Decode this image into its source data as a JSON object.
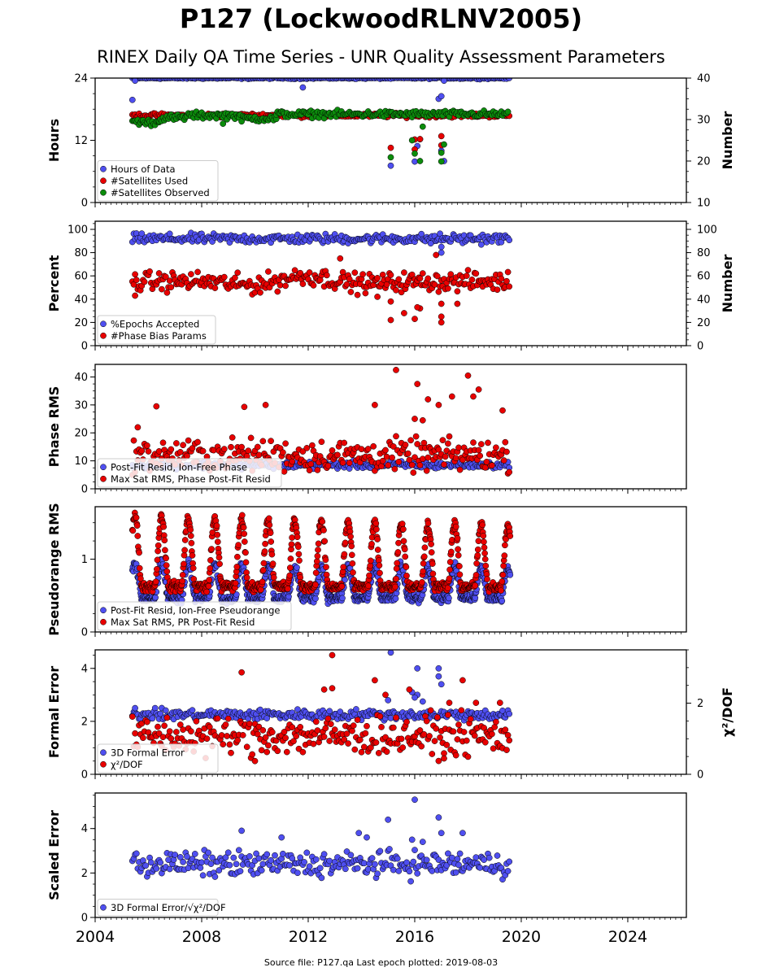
{
  "title": "P127 (LockwoodRLNV2005)",
  "subtitle": "RINEX Daily QA Time Series - UNR Quality Assessment Parameters",
  "footer": "Source file: P127.qa Last epoch plotted: 2019-08-03",
  "colors": {
    "blue": "#4f4ff0",
    "red": "#e80000",
    "green": "#0c8c0c",
    "edge": "#000000"
  },
  "chart_data": [
    {
      "type": "scatter",
      "ylabel": "Hours",
      "y2label": "Number",
      "ylim": [
        0,
        24
      ],
      "yticks": [
        0,
        12,
        24
      ],
      "y2lim": [
        10,
        40
      ],
      "y2ticks": [
        10,
        20,
        30,
        40
      ],
      "legend": [
        "Hours of Data",
        "#Satellites Used",
        "#Satellites Observed"
      ],
      "legend_loc": "lower-left",
      "series": [
        {
          "name": "Hours of Data",
          "color": "blue",
          "axis": "left",
          "base": 24.0,
          "spread": 0.1,
          "outliers": [
            [
              2005.4,
              19.8
            ],
            [
              2005.5,
              23.5
            ],
            [
              2011.8,
              22.2
            ],
            [
              2015.1,
              7.1
            ],
            [
              2016.0,
              7.9
            ],
            [
              2016.2,
              12.2
            ],
            [
              2016.1,
              10.9
            ],
            [
              2017.0,
              10.0
            ],
            [
              2016.9,
              20.0
            ],
            [
              2017.0,
              20.5
            ],
            [
              2017.1,
              8.0
            ],
            [
              2017.1,
              23.5
            ]
          ]
        },
        {
          "name": "#Satellites Used",
          "color": "red",
          "axis": "right",
          "base": 31.0,
          "spread": 0.3,
          "outliers": [
            [
              2015.1,
              23.2
            ],
            [
              2016.0,
              25.2
            ],
            [
              2016.0,
              22.8
            ],
            [
              2016.2,
              25.3
            ],
            [
              2017.0,
              26.0
            ],
            [
              2017.0,
              23.8
            ]
          ]
        },
        {
          "name": "#Satellites Observed",
          "color": "green",
          "axis": "right",
          "segments": [
            [
              2005.4,
              2005.8,
              29.5
            ],
            [
              2005.8,
              2006.4,
              29.3
            ],
            [
              2006.4,
              2007.4,
              30.4
            ],
            [
              2007.4,
              2009.4,
              31.0
            ],
            [
              2009.4,
              2010.8,
              30.3
            ],
            [
              2010.8,
              2019.5,
              31.3
            ]
          ],
          "spread": 0.5,
          "outliers": [
            [
              2015.1,
              20.9
            ],
            [
              2015.9,
              25.0
            ],
            [
              2016.0,
              21.8
            ],
            [
              2016.2,
              20.0
            ],
            [
              2016.3,
              28.3
            ],
            [
              2017.0,
              22.0
            ],
            [
              2017.0,
              19.9
            ],
            [
              2017.1,
              24.0
            ],
            [
              2008.8,
              29.0
            ]
          ]
        }
      ]
    },
    {
      "type": "scatter",
      "ylabel": "Percent",
      "y2label": "Number",
      "ylim": [
        0,
        107
      ],
      "yticks": [
        0,
        20,
        40,
        60,
        80,
        100
      ],
      "y2lim": [
        0,
        107
      ],
      "y2ticks": [
        0,
        20,
        40,
        60,
        80,
        100
      ],
      "legend": [
        "%Epochs Accepted",
        "#Phase Bias Params"
      ],
      "legend_loc": "lower-left",
      "series": [
        {
          "name": "%Epochs Accepted",
          "color": "blue",
          "axis": "left",
          "base": 92.0,
          "spread": 2.5,
          "outliers": [
            [
              2017.0,
              80.0
            ],
            [
              2017.0,
              85.0
            ],
            [
              2016.6,
              88.0
            ]
          ]
        },
        {
          "name": "#Phase Bias Params",
          "color": "red",
          "axis": "right",
          "base": 55.0,
          "spread": 5.0,
          "outliers": [
            [
              2005.5,
              43.0
            ],
            [
              2015.1,
              22.0
            ],
            [
              2015.1,
              38.0
            ],
            [
              2016.0,
              23.0
            ],
            [
              2016.2,
              32.0
            ],
            [
              2016.1,
              33.0
            ],
            [
              2016.8,
              78.0
            ],
            [
              2017.0,
              20.0
            ],
            [
              2017.0,
              25.0
            ],
            [
              2017.0,
              36.0
            ],
            [
              2013.2,
              75.0
            ],
            [
              2014.6,
              42.0
            ],
            [
              2015.6,
              28.0
            ],
            [
              2017.6,
              36.0
            ]
          ]
        }
      ]
    },
    {
      "type": "scatter",
      "ylabel": "Phase RMS",
      "ylim": [
        0,
        44.5
      ],
      "yticks": [
        0,
        10,
        20,
        30,
        40
      ],
      "legend": [
        "Post-Fit Resid, Ion-Free Phase",
        "Max Sat RMS, Phase Post-Fit Resid"
      ],
      "legend_loc": "lower-left",
      "series": [
        {
          "name": "Post-Fit Resid, Ion-Free Phase",
          "color": "blue",
          "base": 8.5,
          "spread": 0.8
        },
        {
          "name": "Max Sat RMS, Phase Post-Fit Resid",
          "color": "red",
          "base": 12.0,
          "spread": 3.5,
          "outliers": [
            [
              2005.6,
              22.0
            ],
            [
              2006.3,
              29.5
            ],
            [
              2009.6,
              29.3
            ],
            [
              2010.4,
              30.0
            ],
            [
              2014.5,
              30.0
            ],
            [
              2015.3,
              42.5
            ],
            [
              2016.1,
              37.5
            ],
            [
              2016.5,
              32.0
            ],
            [
              2016.9,
              30.0
            ],
            [
              2017.4,
              33.0
            ],
            [
              2018.0,
              40.5
            ],
            [
              2018.4,
              35.5
            ],
            [
              2018.2,
              33.0
            ],
            [
              2019.3,
              28.0
            ],
            [
              2016.0,
              25.0
            ],
            [
              2016.3,
              24.5
            ]
          ]
        }
      ]
    },
    {
      "type": "scatter",
      "ylabel": "Pseudorange RMS",
      "ylim": [
        0,
        1.72
      ],
      "yticks": [
        0,
        1
      ],
      "legend": [
        "Post-Fit Resid, Ion-Free Pseudorange",
        "Max Sat RMS, PR Post-Fit Resid"
      ],
      "legend_loc": "lower-left",
      "series": [
        {
          "name": "Post-Fit Resid, Ion-Free Pseudorange",
          "color": "blue",
          "seasonal": true,
          "low": 0.38,
          "high": 0.95
        },
        {
          "name": "Max Sat RMS, PR Post-Fit Resid",
          "color": "red",
          "seasonal": true,
          "low": 0.45,
          "high": 1.6
        }
      ]
    },
    {
      "type": "scatter",
      "ylabel": "Formal Error",
      "y2label": "χ²/DOF",
      "ylim": [
        0,
        4.7
      ],
      "yticks": [
        0,
        2,
        4
      ],
      "y2lim": [
        0,
        3.5
      ],
      "y2ticks": [
        0,
        2
      ],
      "legend": [
        "3D Formal Error",
        "χ²/DOF"
      ],
      "legend_loc": "lower-left",
      "series": [
        {
          "name": "3D Formal Error",
          "color": "blue",
          "axis": "left",
          "base": 2.25,
          "spread": 0.12,
          "outliers": [
            [
              2005.5,
              2.5
            ],
            [
              2015.1,
              4.6
            ],
            [
              2015.9,
              3.1
            ],
            [
              2016.1,
              3.0
            ],
            [
              2016.1,
              4.0
            ],
            [
              2016.9,
              4.0
            ],
            [
              2016.9,
              3.7
            ],
            [
              2017.0,
              3.4
            ],
            [
              2016.0,
              2.9
            ],
            [
              2016.3,
              2.75
            ],
            [
              2015.0,
              2.8
            ]
          ]
        },
        {
          "name": "χ²/DOF",
          "color": "red",
          "axis": "left",
          "base": 1.45,
          "spread": 0.45,
          "outliers": [
            [
              2009.5,
              3.85
            ],
            [
              2012.9,
              4.5
            ],
            [
              2014.5,
              3.55
            ],
            [
              2014.9,
              3.0
            ],
            [
              2017.8,
              3.55
            ],
            [
              2017.3,
              2.7
            ],
            [
              2018.3,
              2.7
            ],
            [
              2019.2,
              2.7
            ],
            [
              2012.6,
              3.2
            ],
            [
              2012.9,
              3.25
            ],
            [
              2015.8,
              3.2
            ],
            [
              2010.0,
              0.5
            ],
            [
              2017.1,
              0.6
            ]
          ]
        }
      ]
    },
    {
      "type": "scatter",
      "ylabel": "Scaled Error",
      "ylim": [
        0,
        5.6
      ],
      "yticks": [
        0,
        2,
        4
      ],
      "legend": [
        "3D Formal Error/√χ²/DOF"
      ],
      "legend_loc": "lower-left",
      "series": [
        {
          "name": "3D Formal Error/√χ²/DOF",
          "color": "blue",
          "base": 2.4,
          "spread": 0.35,
          "outliers": [
            [
              2009.5,
              3.9
            ],
            [
              2011.0,
              3.6
            ],
            [
              2015.0,
              4.4
            ],
            [
              2016.0,
              5.3
            ],
            [
              2016.9,
              4.5
            ],
            [
              2017.0,
              3.8
            ],
            [
              2017.8,
              3.8
            ],
            [
              2016.3,
              3.4
            ],
            [
              2015.9,
              3.5
            ],
            [
              2013.9,
              3.8
            ],
            [
              2014.2,
              3.6
            ]
          ]
        }
      ]
    }
  ],
  "x_axis": {
    "xlim": [
      2004.0,
      2026.2
    ],
    "ticks": [
      2004,
      2008,
      2012,
      2016,
      2020,
      2024
    ],
    "data_start": 2005.4,
    "data_end": 2019.59
  }
}
